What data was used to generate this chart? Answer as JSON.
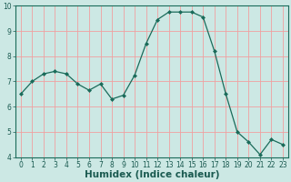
{
  "x": [
    0,
    1,
    2,
    3,
    4,
    5,
    6,
    7,
    8,
    9,
    10,
    11,
    12,
    13,
    14,
    15,
    16,
    17,
    18,
    19,
    20,
    21,
    22,
    23
  ],
  "y": [
    6.5,
    7.0,
    7.3,
    7.4,
    7.3,
    6.9,
    6.65,
    6.9,
    6.3,
    6.45,
    7.25,
    8.5,
    9.45,
    9.75,
    9.75,
    9.75,
    9.55,
    8.2,
    6.5,
    5.0,
    4.6,
    4.1,
    4.7,
    4.5
  ],
  "line_color": "#1a6b5a",
  "marker": "D",
  "marker_size": 2.0,
  "bg_color": "#cce8e4",
  "grid_color": "#f0a0a0",
  "xlabel": "Humidex (Indice chaleur)",
  "ylim": [
    4,
    10
  ],
  "xlim": [
    -0.5,
    23.5
  ],
  "yticks": [
    4,
    5,
    6,
    7,
    8,
    9,
    10
  ],
  "xticks": [
    0,
    1,
    2,
    3,
    4,
    5,
    6,
    7,
    8,
    9,
    10,
    11,
    12,
    13,
    14,
    15,
    16,
    17,
    18,
    19,
    20,
    21,
    22,
    23
  ],
  "tick_fontsize": 5.5,
  "xlabel_fontsize": 7.5,
  "xlabel_fontweight": "bold",
  "text_color": "#1a5a50"
}
